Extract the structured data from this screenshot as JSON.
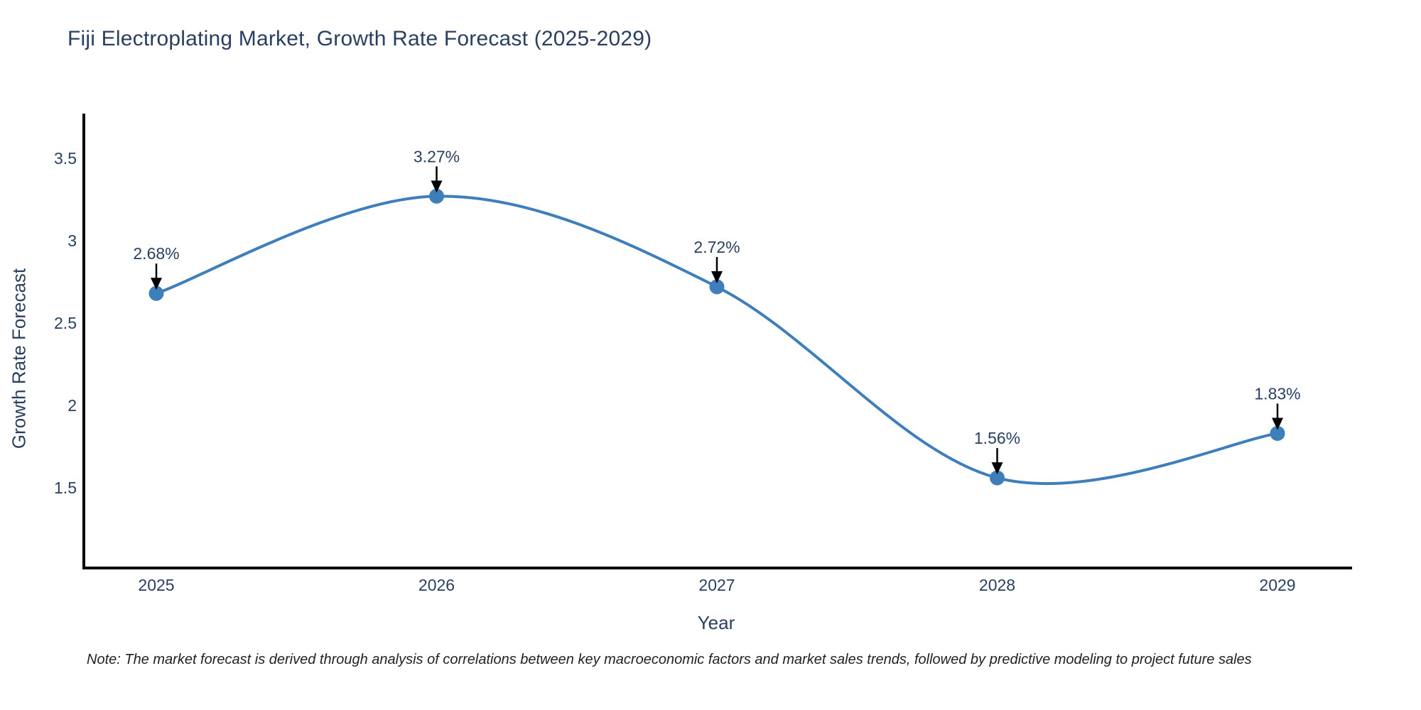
{
  "note": "Note: The market forecast is derived through analysis of correlations between key macroeconomic factors and market sales trends, followed by predictive modeling to project future sales",
  "chart_data": {
    "type": "line",
    "title": "Fiji Electroplating Market, Growth Rate Forecast (2025-2029)",
    "xlabel": "Year",
    "ylabel": "Growth Rate Forecast",
    "x": [
      2025,
      2026,
      2027,
      2028,
      2029
    ],
    "values": [
      2.68,
      3.27,
      2.72,
      1.56,
      1.83
    ],
    "point_labels": [
      "2.68%",
      "3.27%",
      "2.72%",
      "1.56%",
      "1.83%"
    ],
    "yticks": [
      1.5,
      2,
      2.5,
      3,
      3.5
    ],
    "ylim": [
      1.0,
      3.8
    ],
    "curve": "spline",
    "grid": false,
    "legend": "none",
    "line_color": "#3e7ebb",
    "marker_color": "#3e7ebb",
    "annotation_color": "#000000",
    "axis_color": "#000000",
    "text_color": "#2a3f5f"
  }
}
